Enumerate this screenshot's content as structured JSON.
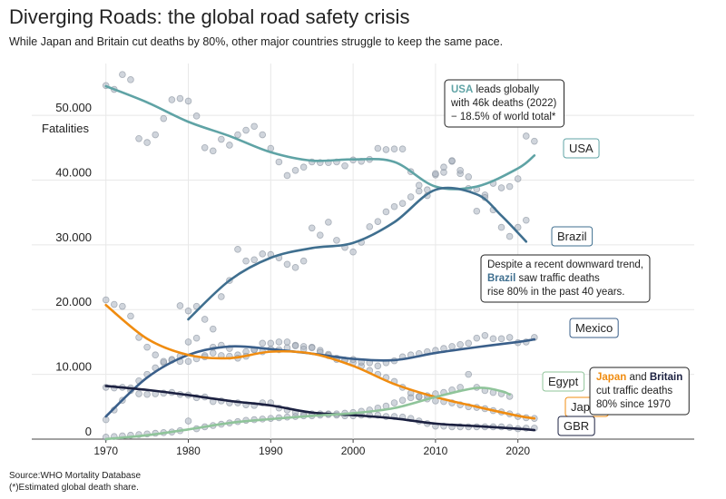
{
  "chart_data": {
    "type": "scatter-trend",
    "title": "Diverging Roads: the global road safety crisis",
    "subtitle": "While Japan and Britain cut deaths by 80%, other major countries struggle to keep the same pace.",
    "y_label": "Fatalities",
    "source": [
      "Source:WHO Mortality Database",
      "(*)Estimated global death share."
    ],
    "xlim": [
      1961,
      2041.4
    ],
    "xticks": [
      1970,
      1980,
      1990,
      2000,
      2010,
      2020
    ],
    "ylim": [
      0,
      58000
    ],
    "yticks": [
      0,
      {
        "value": 10000,
        "label": "10.000"
      },
      {
        "value": 20000,
        "label": "20.000"
      },
      {
        "value": 30000,
        "label": "30.000"
      },
      {
        "value": 40000,
        "label": "40.000"
      },
      {
        "value": 50000,
        "label": "50.000"
      }
    ],
    "grid": true,
    "point_color": "#aab3c0",
    "series": [
      {
        "name": "USA",
        "color": "#5fa3a5",
        "x": [
          1970,
          1975,
          1980,
          1985,
          1990,
          1995,
          2000,
          2005,
          2010,
          2015,
          2020,
          2022
        ],
        "values": [
          54500,
          52000,
          49000,
          46800,
          44300,
          43000,
          43200,
          42800,
          39000,
          39000,
          41800,
          43800
        ],
        "points": {
          "x": [
            1970,
            1971,
            1972,
            1973,
            1974,
            1975,
            1976,
            1977,
            1978,
            1979,
            1980,
            1981,
            1982,
            1983,
            1984,
            1985,
            1986,
            1987,
            1988,
            1989,
            1990,
            1991,
            1992,
            1993,
            1994,
            1995,
            1996,
            1997,
            1998,
            1999,
            2000,
            2001,
            2002,
            2003,
            2004,
            2005,
            2006,
            2007,
            2008,
            2009,
            2010,
            2011,
            2012,
            2013,
            2014,
            2015,
            2016,
            2017,
            2018,
            2019,
            2020,
            2021,
            2022
          ],
          "values": [
            54600,
            54000,
            56300,
            55500,
            46400,
            45800,
            47000,
            49500,
            52400,
            52600,
            52200,
            49900,
            45000,
            44500,
            46300,
            45400,
            47000,
            47700,
            48300,
            47000,
            44900,
            42800,
            40700,
            41500,
            42000,
            42800,
            42700,
            42700,
            42800,
            42200,
            43100,
            42900,
            43200,
            44900,
            44700,
            44800,
            44800,
            41300,
            39200,
            38500,
            40800,
            41200,
            42900,
            41000,
            38700,
            35200,
            37700,
            39500,
            38800,
            39000,
            40200,
            46800,
            46000
          ]
        }
      },
      {
        "name": "Brazil",
        "color": "#3f6f8f",
        "x": [
          1980,
          1985,
          1990,
          1995,
          2000,
          2005,
          2010,
          2015,
          2018,
          2021
        ],
        "values": [
          18500,
          24500,
          28000,
          29500,
          30300,
          33500,
          38500,
          37800,
          34500,
          30500
        ],
        "points": {
          "x": [
            1979,
            1980,
            1981,
            1982,
            1983,
            1984,
            1985,
            1986,
            1987,
            1988,
            1989,
            1990,
            1991,
            1992,
            1993,
            1994,
            1995,
            1996,
            1997,
            1998,
            1999,
            2000,
            2001,
            2002,
            2003,
            2004,
            2005,
            2006,
            2007,
            2008,
            2009,
            2010,
            2011,
            2012,
            2013,
            2014,
            2015,
            2016,
            2017,
            2018,
            2019,
            2020,
            2021
          ],
          "values": [
            20600,
            19800,
            20500,
            18500,
            17000,
            22000,
            24500,
            29300,
            27500,
            27700,
            28600,
            28500,
            28000,
            27000,
            26500,
            27500,
            32600,
            31500,
            33500,
            30700,
            29600,
            28900,
            30400,
            32800,
            33600,
            35100,
            35900,
            36400,
            37400,
            38300,
            37600,
            41000,
            42000,
            43000,
            41500,
            40500,
            38600,
            37300,
            35400,
            32700,
            31300,
            32700,
            33800
          ]
        }
      },
      {
        "name": "Mexico",
        "color": "#3a5f8a",
        "x": [
          1970,
          1975,
          1980,
          1985,
          1990,
          1995,
          2000,
          2005,
          2010,
          2015,
          2020,
          2022
        ],
        "values": [
          3500,
          9500,
          13000,
          14300,
          13900,
          13200,
          12400,
          12200,
          13300,
          14200,
          15000,
          15400
        ],
        "points": {
          "x": [
            1970,
            1971,
            1972,
            1973,
            1974,
            1975,
            1976,
            1977,
            1978,
            1979,
            1980,
            1981,
            1982,
            1983,
            1984,
            1985,
            1986,
            1987,
            1988,
            1989,
            1990,
            1991,
            1992,
            1993,
            1994,
            1995,
            1996,
            1997,
            1998,
            1999,
            2000,
            2001,
            2002,
            2003,
            2004,
            2005,
            2006,
            2007,
            2008,
            2009,
            2010,
            2011,
            2012,
            2013,
            2014,
            2015,
            2016,
            2017,
            2018,
            2019,
            2020,
            2021,
            2022
          ],
          "values": [
            3000,
            4500,
            6000,
            7500,
            9000,
            10000,
            11000,
            11800,
            12200,
            12800,
            15000,
            15600,
            12700,
            14200,
            14500,
            14000,
            13000,
            13500,
            13800,
            13500,
            13900,
            13800,
            14100,
            14500,
            14300,
            14200,
            13700,
            13100,
            12500,
            12200,
            11800,
            11300,
            11800,
            11300,
            11800,
            12100,
            12700,
            13000,
            13200,
            13500,
            13700,
            14000,
            14300,
            14600,
            14800,
            15600,
            16000,
            15500,
            15500,
            15700,
            14900,
            15000,
            15700
          ]
        }
      },
      {
        "name": "Japan",
        "color": "#f08c10",
        "x": [
          1970,
          1975,
          1980,
          1985,
          1990,
          1995,
          2000,
          2005,
          2010,
          2015,
          2020,
          2022
        ],
        "values": [
          20700,
          15500,
          13000,
          12500,
          13500,
          13200,
          11300,
          8500,
          6500,
          5000,
          3600,
          3200
        ],
        "points": {
          "x": [
            1970,
            1971,
            1972,
            1973,
            1974,
            1975,
            1976,
            1977,
            1978,
            1979,
            1980,
            1981,
            1982,
            1983,
            1984,
            1985,
            1986,
            1987,
            1988,
            1989,
            1990,
            1991,
            1992,
            1993,
            1994,
            1995,
            1996,
            1997,
            1998,
            1999,
            2000,
            2001,
            2002,
            2003,
            2004,
            2005,
            2006,
            2007,
            2008,
            2009,
            2010,
            2011,
            2012,
            2013,
            2014,
            2015,
            2016,
            2017,
            2018,
            2019,
            2020,
            2021,
            2022
          ],
          "values": [
            21500,
            20800,
            20500,
            19000,
            15700,
            14200,
            13000,
            12000,
            12300,
            12000,
            12000,
            12400,
            12900,
            13300,
            12900,
            12800,
            12500,
            12800,
            13800,
            14800,
            14800,
            15000,
            15000,
            14400,
            13900,
            14100,
            13400,
            12900,
            12300,
            12200,
            12300,
            11900,
            10600,
            10000,
            9500,
            8900,
            8000,
            7100,
            6500,
            6200,
            5900,
            5800,
            5600,
            5300,
            5000,
            4900,
            4700,
            4400,
            4200,
            3900,
            3500,
            3300,
            3200
          ]
        }
      },
      {
        "name": "GBR",
        "color": "#1b2040",
        "x": [
          1970,
          1975,
          1980,
          1985,
          1990,
          1995,
          2000,
          2005,
          2010,
          2015,
          2020,
          2022
        ],
        "values": [
          8200,
          7600,
          6800,
          5900,
          5200,
          4100,
          3700,
          3200,
          2400,
          2000,
          1600,
          1400
        ],
        "points": {
          "x": [
            1970,
            1971,
            1972,
            1973,
            1974,
            1975,
            1976,
            1977,
            1978,
            1979,
            1980,
            1981,
            1982,
            1983,
            1984,
            1985,
            1986,
            1987,
            1988,
            1989,
            1990,
            1991,
            1992,
            1993,
            1994,
            1995,
            1996,
            1997,
            1998,
            1999,
            2000,
            2001,
            2002,
            2003,
            2004,
            2005,
            2006,
            2007,
            2008,
            2009,
            2010,
            2011,
            2012,
            2013,
            2014,
            2015,
            2016,
            2017,
            2018,
            2019,
            2020,
            2021,
            2022
          ],
          "values": [
            8000,
            7900,
            8000,
            7900,
            7000,
            6900,
            7000,
            7100,
            7200,
            6900,
            6800,
            6400,
            6500,
            5800,
            5900,
            5600,
            5600,
            5300,
            5200,
            5600,
            5600,
            4800,
            4500,
            4100,
            3900,
            3900,
            3900,
            3900,
            3700,
            3600,
            3600,
            3700,
            3700,
            3700,
            3500,
            3500,
            3400,
            3200,
            2800,
            2400,
            2000,
            2000,
            1900,
            1900,
            1900,
            1900,
            1900,
            1900,
            1900,
            1800,
            1600,
            1700,
            1700
          ]
        }
      },
      {
        "name": "Egypt",
        "color": "#8fc49a",
        "x": [
          1970,
          1975,
          1980,
          1985,
          1990,
          1995,
          2000,
          2005,
          2010,
          2015,
          2018,
          2019
        ],
        "values": [
          0,
          600,
          1500,
          2500,
          3100,
          3600,
          4000,
          4800,
          6500,
          7900,
          7400,
          6900
        ],
        "points": {
          "x": [
            1970,
            1971,
            1972,
            1973,
            1974,
            1975,
            1976,
            1977,
            1978,
            1979,
            1980,
            1981,
            1982,
            1983,
            1984,
            1985,
            1986,
            1987,
            1988,
            1989,
            1990,
            1991,
            1992,
            1993,
            1994,
            1995,
            1996,
            1997,
            1998,
            1999,
            2000,
            2001,
            2002,
            2003,
            2004,
            2005,
            2006,
            2007,
            2008,
            2009,
            2010,
            2011,
            2012,
            2013,
            2014,
            2015,
            2016,
            2017,
            2018,
            2019
          ],
          "values": [
            300,
            400,
            500,
            600,
            700,
            800,
            900,
            1000,
            1100,
            1300,
            2800,
            1600,
            1900,
            2100,
            2300,
            2500,
            2700,
            2900,
            3000,
            3100,
            3200,
            3300,
            3400,
            3500,
            3600,
            3600,
            3700,
            3800,
            3900,
            4000,
            4100,
            4300,
            4500,
            4800,
            5100,
            5600,
            6000,
            6400,
            6600,
            6700,
            7000,
            7200,
            7600,
            8000,
            10000,
            8000,
            7500,
            7200,
            7000,
            6600
          ]
        }
      }
    ],
    "annotations": [
      {
        "lines": [
          [
            {
              "text": "USA",
              "color": "#5fa3a5"
            },
            {
              "text": " leads globally"
            }
          ],
          [
            {
              "text": "with 46k deaths (2022)"
            }
          ],
          [
            {
              "text": "− 18.5% of world total*"
            }
          ]
        ]
      },
      {
        "lines": [
          [
            {
              "text": "Despite a recent downward trend,"
            }
          ],
          [
            {
              "text": "Brazil",
              "color": "#3f6f8f"
            },
            {
              "text": " saw traffic deaths"
            }
          ],
          [
            {
              "text": "rise 80% in the past 40 years."
            }
          ]
        ]
      },
      {
        "lines": [
          [
            {
              "text": "Japan",
              "color": "#f08c10"
            },
            {
              "text": " and "
            },
            {
              "text": "Britain",
              "color": "#1b2040"
            }
          ],
          [
            {
              "text": "cut traffic deaths"
            }
          ],
          [
            {
              "text": "80% since 1970"
            }
          ]
        ]
      }
    ]
  }
}
